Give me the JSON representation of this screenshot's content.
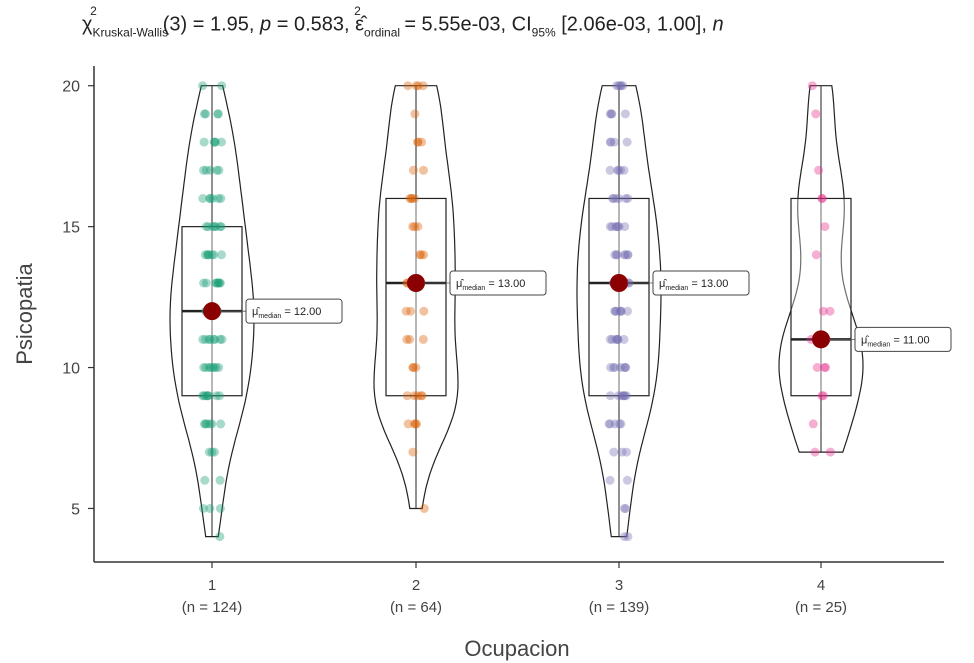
{
  "chart_data": {
    "type": "violin-box-jitter",
    "title": {
      "chi": "χ",
      "chi_sup": "2",
      "chi_sub": "Kruskal-Wallis",
      "df_and_stat": "(3) = 1.95, ",
      "p_symbol": "p",
      "p_value": " = 0.583, ",
      "eps": "ε̂",
      "eps_sup": "2",
      "eps_sub": "ordinal",
      "eps_value": " = 5.55e-03, CI",
      "ci_sub": "95%",
      "ci_value": " [2.06e-03, 1.00], ",
      "n_symbol": "n"
    },
    "xlabel": "Ocupacion",
    "ylabel": "Psicopatia",
    "ylim": [
      3.1,
      20.7
    ],
    "yticks": [
      "5",
      "10",
      "15",
      "20"
    ],
    "grid": false,
    "categories": [
      "1",
      "2",
      "3",
      "4"
    ],
    "n_labels": [
      "(n = 124)",
      "(n = 64)",
      "(n = 139)",
      "(n = 25)"
    ],
    "colors": [
      "#1b9e77",
      "#d95f02",
      "#7570b3",
      "#e7298a"
    ],
    "groups": [
      {
        "name": "1",
        "min": 4,
        "max": 20,
        "q1": 9,
        "median": 12,
        "q3": 15,
        "median_label": "= 12.00",
        "values": [
          4,
          5,
          5,
          5,
          6,
          6,
          7,
          7,
          7,
          8,
          8,
          8,
          8,
          8,
          8,
          9,
          9,
          9,
          9,
          9,
          9,
          9,
          9,
          10,
          10,
          10,
          10,
          10,
          10,
          10,
          10,
          11,
          11,
          11,
          11,
          11,
          11,
          11,
          11,
          12,
          12,
          12,
          12,
          12,
          12,
          12,
          12,
          12,
          12,
          13,
          13,
          13,
          13,
          13,
          13,
          13,
          13,
          14,
          14,
          14,
          14,
          14,
          14,
          14,
          15,
          15,
          15,
          15,
          15,
          15,
          15,
          16,
          16,
          16,
          16,
          16,
          16,
          17,
          17,
          17,
          17,
          17,
          18,
          18,
          18,
          18,
          18,
          19,
          19,
          19,
          19,
          20,
          20
        ]
      },
      {
        "name": "2",
        "min": 5,
        "max": 20,
        "q1": 9,
        "median": 13,
        "q3": 16,
        "median_label": "= 13.00",
        "values": [
          5,
          7,
          8,
          8,
          8,
          8,
          9,
          9,
          9,
          9,
          9,
          10,
          10,
          10,
          11,
          11,
          11,
          12,
          12,
          12,
          13,
          13,
          13,
          13,
          14,
          14,
          14,
          15,
          15,
          15,
          16,
          16,
          16,
          16,
          17,
          17,
          18,
          18,
          18,
          19,
          20,
          20,
          20,
          20
        ]
      },
      {
        "name": "3",
        "min": 4,
        "max": 20,
        "q1": 9,
        "median": 13,
        "q3": 16,
        "median_label": "= 13.00",
        "values": [
          4,
          4,
          5,
          5,
          6,
          6,
          7,
          7,
          7,
          8,
          8,
          8,
          8,
          8,
          9,
          9,
          9,
          9,
          9,
          9,
          9,
          10,
          10,
          10,
          10,
          10,
          10,
          10,
          11,
          11,
          11,
          11,
          11,
          11,
          11,
          12,
          12,
          12,
          12,
          12,
          12,
          12,
          13,
          13,
          13,
          13,
          13,
          13,
          13,
          13,
          14,
          14,
          14,
          14,
          14,
          14,
          14,
          15,
          15,
          15,
          15,
          15,
          15,
          15,
          16,
          16,
          16,
          16,
          16,
          16,
          17,
          17,
          17,
          17,
          17,
          18,
          18,
          18,
          18,
          19,
          19,
          19,
          19,
          20,
          20,
          20,
          20,
          20
        ]
      },
      {
        "name": "4",
        "min": 7,
        "max": 20,
        "q1": 9,
        "median": 11,
        "q3": 16,
        "median_label": "= 11.00",
        "values": [
          7,
          7,
          8,
          9,
          9,
          10,
          10,
          10,
          11,
          11,
          12,
          12,
          14,
          15,
          16,
          16,
          17,
          19,
          20
        ]
      }
    ],
    "median_symbol": "μ̂",
    "median_sub": "median"
  }
}
